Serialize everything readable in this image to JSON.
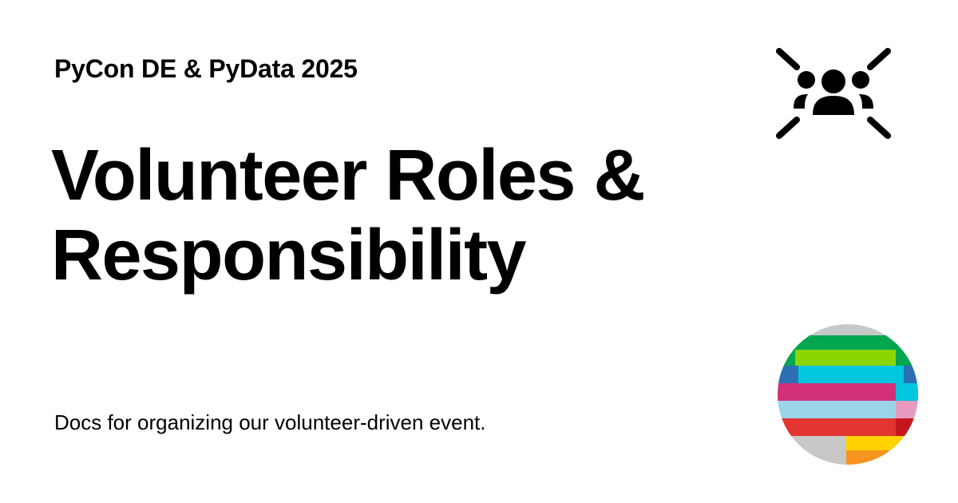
{
  "header": {
    "site_name": "PyCon DE & PyData 2025",
    "icon": "group-icon"
  },
  "main": {
    "title_line_1": "Volunteer Roles &",
    "title_line_2": "Responsibility",
    "description": "Docs for organizing our volunteer-driven event."
  },
  "logo": {
    "icon": "pycon-de-logo",
    "colors": {
      "gray": "#c8c8c8",
      "green": "#00a650",
      "lime": "#8bd600",
      "blue": "#2e6eb5",
      "cyan": "#00c6e0",
      "magenta": "#d2307a",
      "pink": "#e89ac0",
      "light_blue": "#9bd5ea",
      "red": "#e3342f",
      "dark_red": "#c4161c",
      "yellow": "#ffd200",
      "orange": "#f7941d"
    }
  }
}
